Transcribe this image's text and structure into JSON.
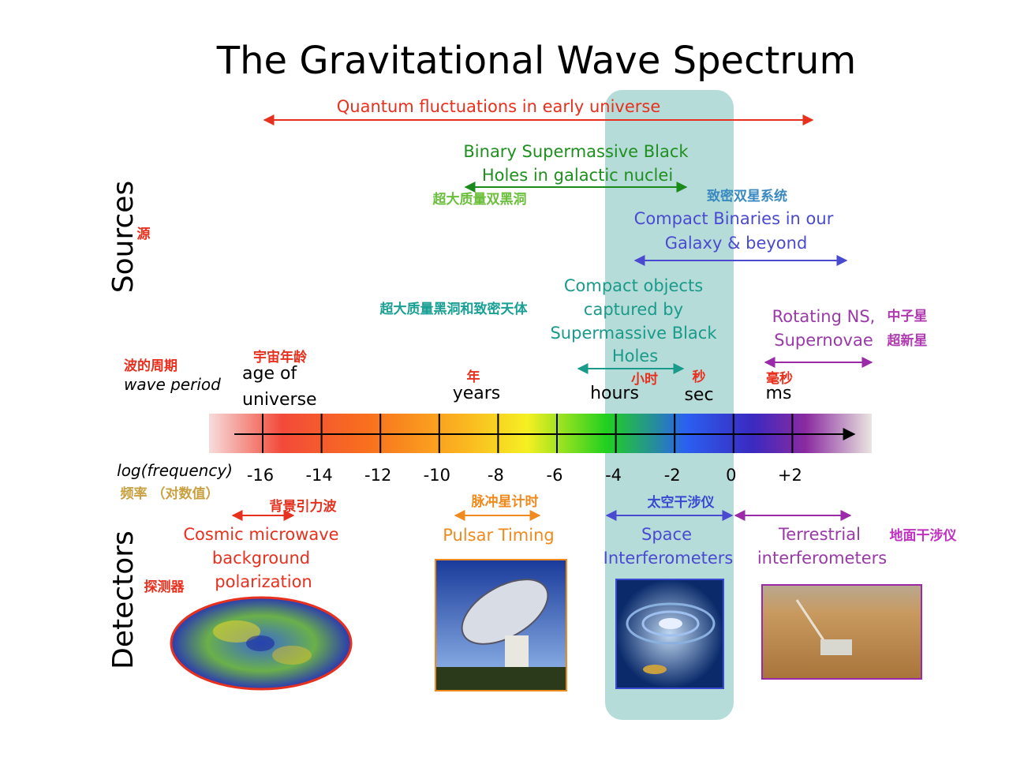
{
  "title": "The Gravitational Wave Spectrum",
  "sides": {
    "sources": "Sources",
    "sources_zh": "源",
    "detectors": "Detectors",
    "detectors_zh": "探测器"
  },
  "sources": {
    "quantum": {
      "label": [
        "Quantum fluctuations in early universe"
      ]
    },
    "smbh_binary": {
      "label": [
        "Binary Supermassive Black",
        "Holes in galactic nuclei"
      ],
      "zh": "超大质量双黑洞"
    },
    "compact_binaries": {
      "zh": "致密双星系统",
      "label": [
        "Compact Binaries in our",
        "Galaxy & beyond"
      ]
    },
    "emri": {
      "zh": "超大质量黑洞和致密天体",
      "label": [
        "Compact objects",
        "captured by",
        "Supermassive Black",
        "Holes"
      ]
    },
    "rotating_ns": {
      "label": [
        "Rotating NS,",
        "Supernovae"
      ],
      "zh": [
        "中子星",
        "超新星"
      ]
    }
  },
  "periods": {
    "zh": "波的周期",
    "label": "wave period",
    "items": [
      {
        "zh": "宇宙年龄",
        "label": [
          "age of",
          "universe"
        ]
      },
      {
        "zh": "年",
        "label": [
          "years"
        ]
      },
      {
        "zh": "小时",
        "label": [
          "hours"
        ]
      },
      {
        "zh": "秒",
        "label": [
          "sec"
        ]
      },
      {
        "zh": "毫秒",
        "label": [
          "ms"
        ]
      }
    ]
  },
  "axis": {
    "label": "log(frequency)",
    "zh": "频率 （对数值）",
    "ticks": [
      "-16",
      "-14",
      "-12",
      "-10",
      "-8",
      "-6",
      "-4",
      "-2",
      "0",
      "+2"
    ]
  },
  "detectors": [
    {
      "zh": "背景引力波",
      "label": [
        "Cosmic microwave",
        "background",
        "polarization"
      ]
    },
    {
      "zh": "脉冲星计时",
      "label": [
        "Pulsar Timing"
      ]
    },
    {
      "zh": "太空干涉仪",
      "label": [
        "Space",
        "Interferometers"
      ]
    },
    {
      "zh": "地面干涉仪",
      "label": [
        "Terrestrial",
        "interferometers"
      ]
    }
  ]
}
